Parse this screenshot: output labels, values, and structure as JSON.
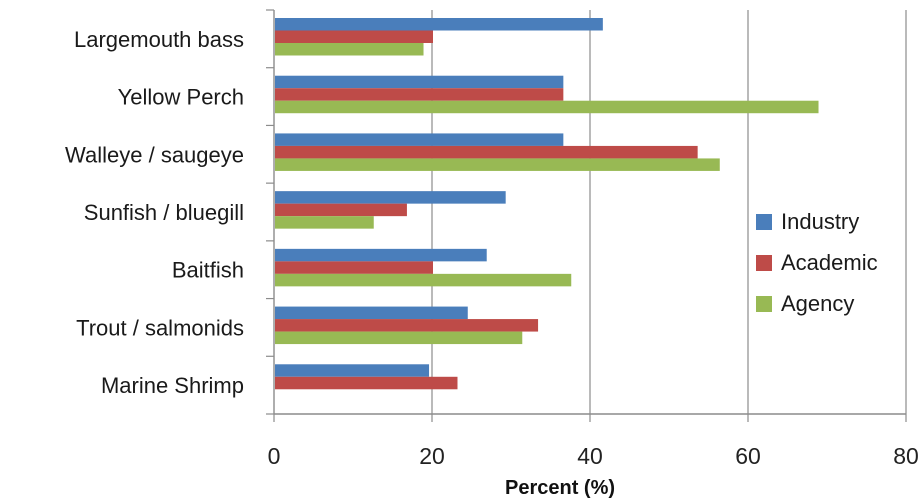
{
  "chart_data": {
    "type": "bar",
    "orientation": "horizontal",
    "categories": [
      "Largemouth bass",
      "Yellow Perch",
      "Walleye / saugeye",
      "Sunfish / bluegill",
      "Baitfish",
      "Trout / salmonids",
      "Marine Shrimp"
    ],
    "series": [
      {
        "name": "Industry",
        "color": "#4a7ebb",
        "values": [
          41.5,
          36.5,
          36.5,
          29.2,
          26.8,
          24.4,
          19.5
        ]
      },
      {
        "name": "Academic",
        "color": "#be4b48",
        "values": [
          20.0,
          36.5,
          53.5,
          16.7,
          20.0,
          33.3,
          23.1
        ]
      },
      {
        "name": "Agency",
        "color": "#98b954",
        "values": [
          18.8,
          68.8,
          56.3,
          12.5,
          37.5,
          31.3,
          0
        ]
      }
    ],
    "xlabel": "Percent (%)",
    "xlim": [
      0,
      80
    ],
    "xticks": [
      "0",
      "20",
      "40",
      "60",
      "80"
    ],
    "grid": "vertical",
    "legend": "right"
  }
}
